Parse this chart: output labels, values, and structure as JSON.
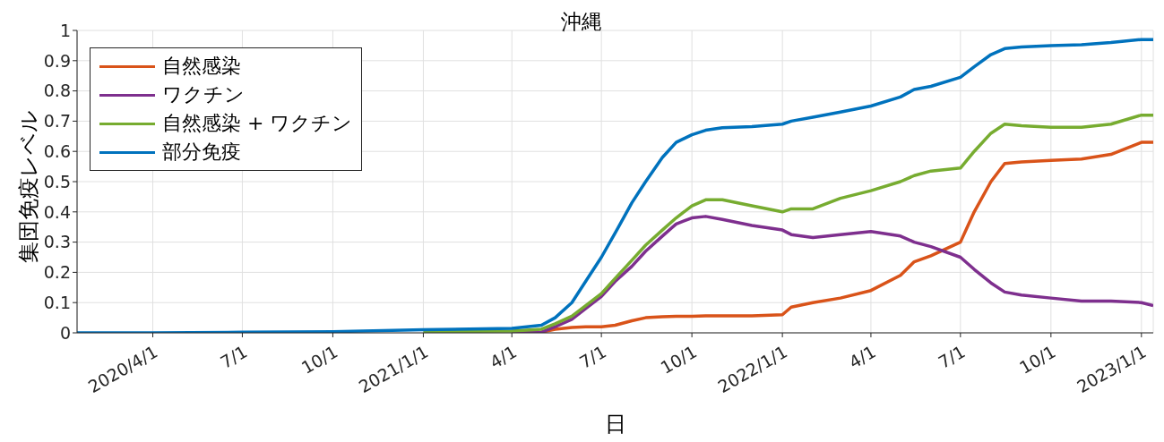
{
  "chart_data": {
    "type": "line",
    "title": "沖縄",
    "xlabel": "日",
    "ylabel": "集団免疫レベル",
    "x": [
      "2020-01-15",
      "2020-04-01",
      "2020-07-01",
      "2020-10-01",
      "2021-01-01",
      "2021-04-01",
      "2021-05-01",
      "2021-05-15",
      "2021-06-01",
      "2021-06-15",
      "2021-07-01",
      "2021-07-15",
      "2021-08-01",
      "2021-08-15",
      "2021-09-01",
      "2021-09-15",
      "2021-10-01",
      "2021-10-15",
      "2021-11-01",
      "2021-12-01",
      "2022-01-01",
      "2022-01-10",
      "2022-02-01",
      "2022-03-01",
      "2022-04-01",
      "2022-05-01",
      "2022-05-15",
      "2022-06-01",
      "2022-07-01",
      "2022-07-15",
      "2022-08-01",
      "2022-08-15",
      "2022-09-01",
      "2022-10-01",
      "2022-11-01",
      "2022-12-01",
      "2023-01-01",
      "2023-01-13"
    ],
    "series": [
      {
        "name": "自然感染",
        "color": "#d95319",
        "values": [
          null,
          null,
          null,
          null,
          null,
          null,
          0.002,
          0.012,
          0.018,
          0.02,
          0.02,
          0.025,
          0.04,
          0.05,
          0.053,
          0.055,
          0.055,
          0.056,
          0.056,
          0.056,
          0.06,
          0.085,
          0.1,
          0.115,
          0.14,
          0.19,
          0.235,
          0.255,
          0.3,
          0.4,
          0.5,
          0.56,
          0.565,
          0.57,
          0.575,
          0.59,
          0.63,
          0.63
        ]
      },
      {
        "name": "ワクチン",
        "color": "#7e2f8e",
        "values": [
          null,
          null,
          null,
          null,
          null,
          0,
          0.002,
          0.02,
          0.045,
          0.08,
          0.12,
          0.17,
          0.22,
          0.27,
          0.32,
          0.36,
          0.38,
          0.385,
          0.375,
          0.355,
          0.34,
          0.325,
          0.315,
          0.325,
          0.335,
          0.32,
          0.3,
          0.285,
          0.25,
          0.21,
          0.165,
          0.135,
          0.125,
          0.115,
          0.105,
          0.105,
          0.1,
          0.09
        ]
      },
      {
        "name": "自然感染 + ワクチン",
        "color": "#77ac30",
        "values": [
          null,
          null,
          null,
          null,
          0.004,
          0.006,
          0.012,
          0.03,
          0.055,
          0.09,
          0.13,
          0.18,
          0.24,
          0.29,
          0.34,
          0.38,
          0.42,
          0.44,
          0.44,
          0.42,
          0.4,
          0.41,
          0.41,
          0.445,
          0.47,
          0.5,
          0.52,
          0.535,
          0.545,
          0.6,
          0.66,
          0.69,
          0.685,
          0.68,
          0.68,
          0.69,
          0.72,
          0.72
        ]
      },
      {
        "name": "部分免疫",
        "color": "#0072bd",
        "values": [
          0,
          0,
          0.002,
          0.004,
          0.01,
          0.015,
          0.025,
          0.05,
          0.1,
          0.17,
          0.25,
          0.33,
          0.43,
          0.5,
          0.58,
          0.63,
          0.655,
          0.67,
          0.678,
          0.682,
          0.69,
          0.7,
          0.713,
          0.73,
          0.75,
          0.78,
          0.805,
          0.815,
          0.845,
          0.88,
          0.92,
          0.94,
          0.945,
          0.95,
          0.953,
          0.96,
          0.97,
          0.97
        ]
      }
    ],
    "xlim": [
      "2020-01-15",
      "2023-01-13"
    ],
    "xticks": [
      {
        "value": "2020-04-01",
        "label": "2020/4/1"
      },
      {
        "value": "2020-07-01",
        "label": "7/1"
      },
      {
        "value": "2020-10-01",
        "label": "10/1"
      },
      {
        "value": "2021-01-01",
        "label": "2021/1/1"
      },
      {
        "value": "2021-04-01",
        "label": "4/1"
      },
      {
        "value": "2021-07-01",
        "label": "7/1"
      },
      {
        "value": "2021-10-01",
        "label": "10/1"
      },
      {
        "value": "2022-01-01",
        "label": "2022/1/1"
      },
      {
        "value": "2022-04-01",
        "label": "4/1"
      },
      {
        "value": "2022-07-01",
        "label": "7/1"
      },
      {
        "value": "2022-10-01",
        "label": "10/1"
      },
      {
        "value": "2023-01-01",
        "label": "2023/1/1"
      }
    ],
    "ylim": [
      0,
      1
    ],
    "yticks": [
      0,
      0.1,
      0.2,
      0.3,
      0.4,
      0.5,
      0.6,
      0.7,
      0.8,
      0.9,
      1
    ],
    "grid": true,
    "legend": "top left",
    "marker": "none",
    "line_style": "solid"
  }
}
